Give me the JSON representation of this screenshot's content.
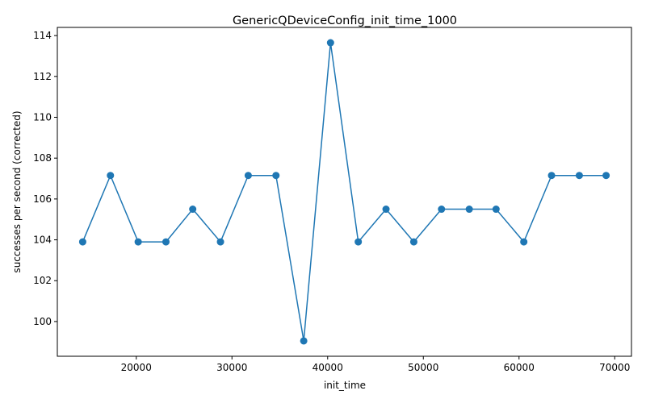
{
  "chart_data": {
    "type": "line",
    "title": "GenericQDeviceConfig_init_time_1000",
    "xlabel": "init_time",
    "ylabel": "successes per second (corrected)",
    "xlim": [
      11750,
      71750
    ],
    "ylim": [
      98.3,
      114.4
    ],
    "xticks": [
      20000,
      30000,
      40000,
      50000,
      60000,
      70000
    ],
    "yticks": [
      100,
      102,
      104,
      106,
      108,
      110,
      112,
      114
    ],
    "grid": false,
    "legend": "none",
    "series": [
      {
        "color": "#1f77b4",
        "marker": "circle",
        "x": [
          14400,
          17300,
          20200,
          23100,
          25900,
          28800,
          31700,
          34600,
          37500,
          40300,
          43200,
          46100,
          49000,
          51900,
          54800,
          57600,
          60500,
          63400,
          66300,
          69100
        ],
        "y": [
          103.9,
          107.15,
          103.9,
          103.9,
          105.5,
          103.9,
          107.15,
          107.15,
          99.05,
          113.65,
          103.9,
          105.5,
          103.9,
          105.5,
          105.5,
          105.5,
          103.9,
          107.15,
          107.15,
          107.15
        ]
      }
    ]
  }
}
